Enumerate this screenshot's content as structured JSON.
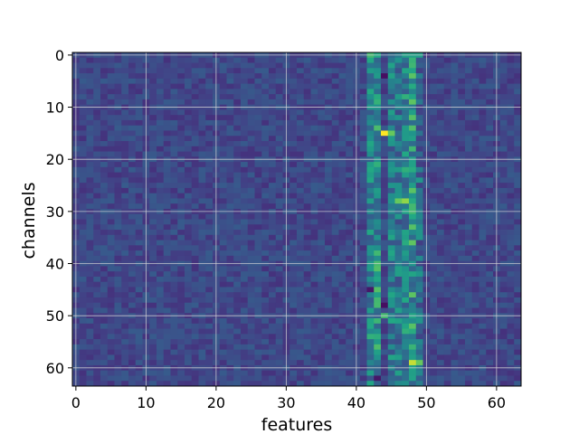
{
  "chart_data": {
    "type": "heatmap",
    "title": "",
    "xlabel": "features",
    "ylabel": "channels",
    "n_cols": 64,
    "n_rows": 64,
    "x_range": [
      0,
      63
    ],
    "y_range": [
      0,
      63
    ],
    "y_inverted": true,
    "x_ticks": [
      0,
      10,
      20,
      30,
      40,
      50,
      60
    ],
    "y_ticks": [
      0,
      10,
      20,
      30,
      40,
      50,
      60
    ],
    "x_tick_labels": [
      "0",
      "10",
      "20",
      "30",
      "40",
      "50",
      "60"
    ],
    "y_tick_labels": [
      "0",
      "10",
      "20",
      "30",
      "40",
      "50",
      "60"
    ],
    "grid": true,
    "colormap": "viridis",
    "colors": {
      "background": "#3b528b",
      "grid": "#d8d8d8",
      "axis": "#000000"
    },
    "value_scale": "normalized 0-1",
    "base_level": 0.27,
    "column_profile": [
      {
        "col": 42,
        "level": 0.55
      },
      {
        "col": 43,
        "level": 0.6
      },
      {
        "col": 45,
        "level": 0.52
      },
      {
        "col": 46,
        "level": 0.5
      },
      {
        "col": 47,
        "level": 0.55
      },
      {
        "col": 48,
        "level": 0.62
      },
      {
        "col": 49,
        "level": 0.45
      }
    ],
    "highlights": [
      {
        "row": 0,
        "col": 42,
        "value": 0.8
      },
      {
        "row": 0,
        "col": 43,
        "value": 0.75
      },
      {
        "row": 0,
        "col": 49,
        "value": 0.7
      },
      {
        "row": 15,
        "col": 44,
        "value": 1.0
      },
      {
        "row": 15,
        "col": 45,
        "value": 0.85
      },
      {
        "row": 22,
        "col": 42,
        "value": 0.75
      },
      {
        "row": 23,
        "col": 42,
        "value": 0.7
      },
      {
        "row": 28,
        "col": 46,
        "value": 0.85
      },
      {
        "row": 28,
        "col": 47,
        "value": 0.9
      },
      {
        "row": 29,
        "col": 48,
        "value": 0.8
      },
      {
        "row": 30,
        "col": 48,
        "value": 0.8
      },
      {
        "row": 31,
        "col": 48,
        "value": 0.75
      },
      {
        "row": 50,
        "col": 44,
        "value": 0.8
      },
      {
        "row": 51,
        "col": 45,
        "value": 0.75
      },
      {
        "row": 59,
        "col": 48,
        "value": 0.95
      },
      {
        "row": 59,
        "col": 49,
        "value": 0.85
      },
      {
        "row": 61,
        "col": 42,
        "value": 0.7
      },
      {
        "row": 4,
        "col": 44,
        "value": 0.05
      },
      {
        "row": 48,
        "col": 44,
        "value": 0.05
      },
      {
        "row": 45,
        "col": 42,
        "value": 0.08
      },
      {
        "row": 62,
        "col": 43,
        "value": 0.08
      }
    ]
  }
}
